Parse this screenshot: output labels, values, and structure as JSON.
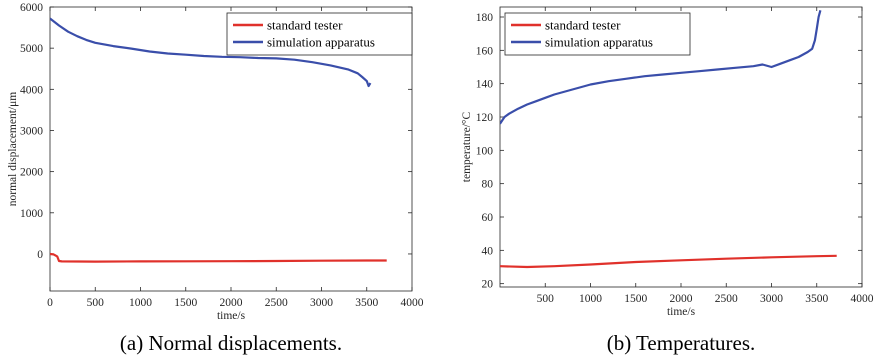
{
  "chart_data": [
    {
      "type": "line",
      "caption": "(a) Normal displacements.",
      "xlabel": "time/s",
      "ylabel": "normal displacement/μm",
      "xlim": [
        0,
        4000
      ],
      "ylim": [
        -900,
        6000
      ],
      "xticks": [
        0,
        500,
        1000,
        1500,
        2000,
        2500,
        3000,
        3500,
        4000
      ],
      "yticks": [
        0,
        1000,
        2000,
        3000,
        4000,
        5000,
        6000
      ],
      "grid": false,
      "legend_position": "top-right",
      "series": [
        {
          "name": "standard tester",
          "color": "#e0312b",
          "x": [
            0,
            40,
            80,
            100,
            130,
            500,
            1000,
            1500,
            2000,
            2500,
            3000,
            3500,
            3720
          ],
          "y": [
            0,
            -10,
            -60,
            -170,
            -180,
            -185,
            -180,
            -178,
            -175,
            -170,
            -165,
            -160,
            -160
          ]
        },
        {
          "name": "simulation apparatus",
          "color": "#3a4eaa",
          "x": [
            0,
            100,
            200,
            300,
            400,
            500,
            700,
            900,
            1100,
            1300,
            1500,
            1700,
            1900,
            2100,
            2300,
            2500,
            2700,
            2900,
            3100,
            3300,
            3400,
            3450,
            3500,
            3520,
            3540
          ],
          "y": [
            5720,
            5550,
            5400,
            5290,
            5200,
            5130,
            5050,
            4990,
            4920,
            4870,
            4840,
            4810,
            4790,
            4780,
            4760,
            4750,
            4720,
            4660,
            4580,
            4480,
            4390,
            4300,
            4200,
            4080,
            4150
          ]
        }
      ]
    },
    {
      "type": "line",
      "caption": "(b) Temperatures.",
      "xlabel": "time/s",
      "ylabel": "temperature/°C",
      "xlim": [
        0,
        4000
      ],
      "ylim": [
        18,
        186
      ],
      "xticks": [
        500,
        1000,
        1500,
        2000,
        2500,
        3000,
        3500,
        4000
      ],
      "yticks": [
        20,
        40,
        60,
        80,
        100,
        120,
        140,
        160,
        180
      ],
      "grid": false,
      "legend_position": "top-left",
      "series": [
        {
          "name": "standard tester",
          "color": "#e0312b",
          "x": [
            0,
            300,
            600,
            1000,
            1500,
            2000,
            2500,
            3000,
            3500,
            3720
          ],
          "y": [
            30.5,
            30,
            30.5,
            31.5,
            33,
            34,
            35,
            35.8,
            36.5,
            36.7
          ]
        },
        {
          "name": "simulation apparatus",
          "color": "#3a4eaa",
          "x": [
            0,
            50,
            100,
            200,
            300,
            400,
            500,
            600,
            700,
            800,
            900,
            1000,
            1200,
            1400,
            1600,
            1800,
            2000,
            2200,
            2400,
            2600,
            2800,
            2900,
            3000,
            3100,
            3200,
            3300,
            3400,
            3450,
            3480,
            3500,
            3520,
            3540
          ],
          "y": [
            116,
            120,
            122,
            125,
            127.5,
            129.5,
            131.5,
            133.5,
            135,
            136.5,
            138,
            139.5,
            141.5,
            143,
            144.5,
            145.5,
            146.5,
            147.5,
            148.5,
            149.5,
            150.5,
            151.5,
            150,
            152,
            154,
            156,
            159,
            161,
            166,
            173,
            180,
            184
          ]
        }
      ]
    }
  ]
}
